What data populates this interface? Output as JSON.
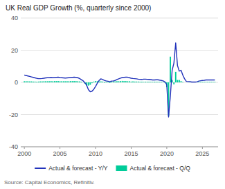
{
  "chart_data": {
    "type": "bar",
    "title": "UK Real GDP Growth (%, quarterly since 2000)",
    "source": "Source: Capital Economics, Refinitiv.",
    "x": [
      2000.0,
      2000.25,
      2000.5,
      2000.75,
      2001.0,
      2001.25,
      2001.5,
      2001.75,
      2002.0,
      2002.25,
      2002.5,
      2002.75,
      2003.0,
      2003.25,
      2003.5,
      2003.75,
      2004.0,
      2004.25,
      2004.5,
      2004.75,
      2005.0,
      2005.25,
      2005.5,
      2005.75,
      2006.0,
      2006.25,
      2006.5,
      2006.75,
      2007.0,
      2007.25,
      2007.5,
      2007.75,
      2008.0,
      2008.25,
      2008.5,
      2008.75,
      2009.0,
      2009.25,
      2009.5,
      2009.75,
      2010.0,
      2010.25,
      2010.5,
      2010.75,
      2011.0,
      2011.25,
      2011.5,
      2011.75,
      2012.0,
      2012.25,
      2012.5,
      2012.75,
      2013.0,
      2013.25,
      2013.5,
      2013.75,
      2014.0,
      2014.25,
      2014.5,
      2014.75,
      2015.0,
      2015.25,
      2015.5,
      2015.75,
      2016.0,
      2016.25,
      2016.5,
      2016.75,
      2017.0,
      2017.25,
      2017.5,
      2017.75,
      2018.0,
      2018.25,
      2018.5,
      2018.75,
      2019.0,
      2019.25,
      2019.5,
      2019.75,
      2020.0,
      2020.25,
      2020.5,
      2020.75,
      2021.0,
      2021.25,
      2021.5,
      2021.75,
      2022.0,
      2022.25,
      2022.5,
      2022.75,
      2023.0,
      2023.25,
      2023.5,
      2023.75,
      2024.0,
      2024.25,
      2024.5,
      2024.75,
      2025.0,
      2025.25,
      2025.5,
      2025.75,
      2026.0,
      2026.25,
      2026.5,
      2026.75
    ],
    "series": [
      {
        "name": "Actual & forecast - Y/Y",
        "type": "line",
        "color": "#2233bb",
        "values": [
          4.5,
          4.3,
          4.0,
          3.7,
          3.4,
          3.1,
          2.8,
          2.5,
          2.3,
          2.3,
          2.4,
          2.6,
          2.8,
          2.9,
          2.9,
          3.0,
          2.9,
          3.0,
          3.1,
          3.2,
          3.0,
          2.9,
          2.8,
          2.7,
          2.8,
          2.9,
          3.0,
          3.1,
          3.2,
          3.1,
          2.9,
          2.4,
          1.7,
          1.0,
          -0.2,
          -1.8,
          -4.5,
          -5.8,
          -5.5,
          -4.3,
          -2.5,
          -0.5,
          1.2,
          2.2,
          1.8,
          1.2,
          0.9,
          0.7,
          0.5,
          0.8,
          0.9,
          1.2,
          1.8,
          2.2,
          2.6,
          3.0,
          3.1,
          3.2,
          3.2,
          2.9,
          2.6,
          2.4,
          2.3,
          2.2,
          2.0,
          1.9,
          1.8,
          2.0,
          2.0,
          1.9,
          1.8,
          1.7,
          1.5,
          1.5,
          1.6,
          1.6,
          1.4,
          1.2,
          0.9,
          0.3,
          -1.5,
          -21.5,
          -8.5,
          7.5,
          12.0,
          24.5,
          10.5,
          7.0,
          7.5,
          4.5,
          2.2,
          0.6,
          0.5,
          0.5,
          0.2,
          0.2,
          0.2,
          0.4,
          0.8,
          1.0,
          1.2,
          1.3,
          1.5,
          1.5,
          1.5,
          1.5,
          1.5,
          1.5
        ]
      },
      {
        "name": "Actual & forecast - Q/Q",
        "type": "bar",
        "color": "#00cc99",
        "values": [
          0.7,
          0.7,
          0.7,
          0.6,
          0.6,
          0.5,
          0.5,
          0.4,
          0.5,
          0.6,
          0.6,
          0.7,
          0.7,
          0.7,
          0.7,
          0.8,
          0.7,
          0.8,
          0.8,
          0.8,
          0.7,
          0.7,
          0.7,
          0.7,
          0.7,
          0.7,
          0.8,
          0.8,
          0.8,
          0.8,
          0.7,
          0.6,
          0.4,
          0.0,
          -0.8,
          -2.0,
          -2.0,
          -1.5,
          -0.5,
          0.5,
          0.8,
          0.7,
          0.6,
          0.6,
          0.5,
          -0.3,
          0.4,
          0.3,
          -0.4,
          0.5,
          0.7,
          0.6,
          0.7,
          0.7,
          0.8,
          0.9,
          0.8,
          0.8,
          0.7,
          0.7,
          0.5,
          0.6,
          0.5,
          0.5,
          0.5,
          0.4,
          0.4,
          0.3,
          0.4,
          0.4,
          0.4,
          0.3,
          0.3,
          0.4,
          0.4,
          0.3,
          0.3,
          0.3,
          0.2,
          -0.3,
          -3.0,
          -20.8,
          16.0,
          1.5,
          -1.2,
          6.5,
          1.5,
          1.5,
          0.8,
          0.3,
          0.0,
          0.0,
          0.1,
          0.3,
          0.3,
          0.1,
          0.3,
          0.3,
          0.3,
          0.3,
          0.3,
          0.3,
          0.3,
          0.3,
          0.3,
          0.3,
          0.3,
          0.3
        ]
      }
    ],
    "xlim": [
      1999.5,
      2027.2
    ],
    "xticks": [
      2000,
      2005,
      2010,
      2015,
      2020,
      2025
    ],
    "ylim": [
      -40,
      40
    ],
    "yticks": [
      -40,
      -20,
      0,
      20,
      40
    ],
    "grid": true,
    "legend": "bottom"
  }
}
